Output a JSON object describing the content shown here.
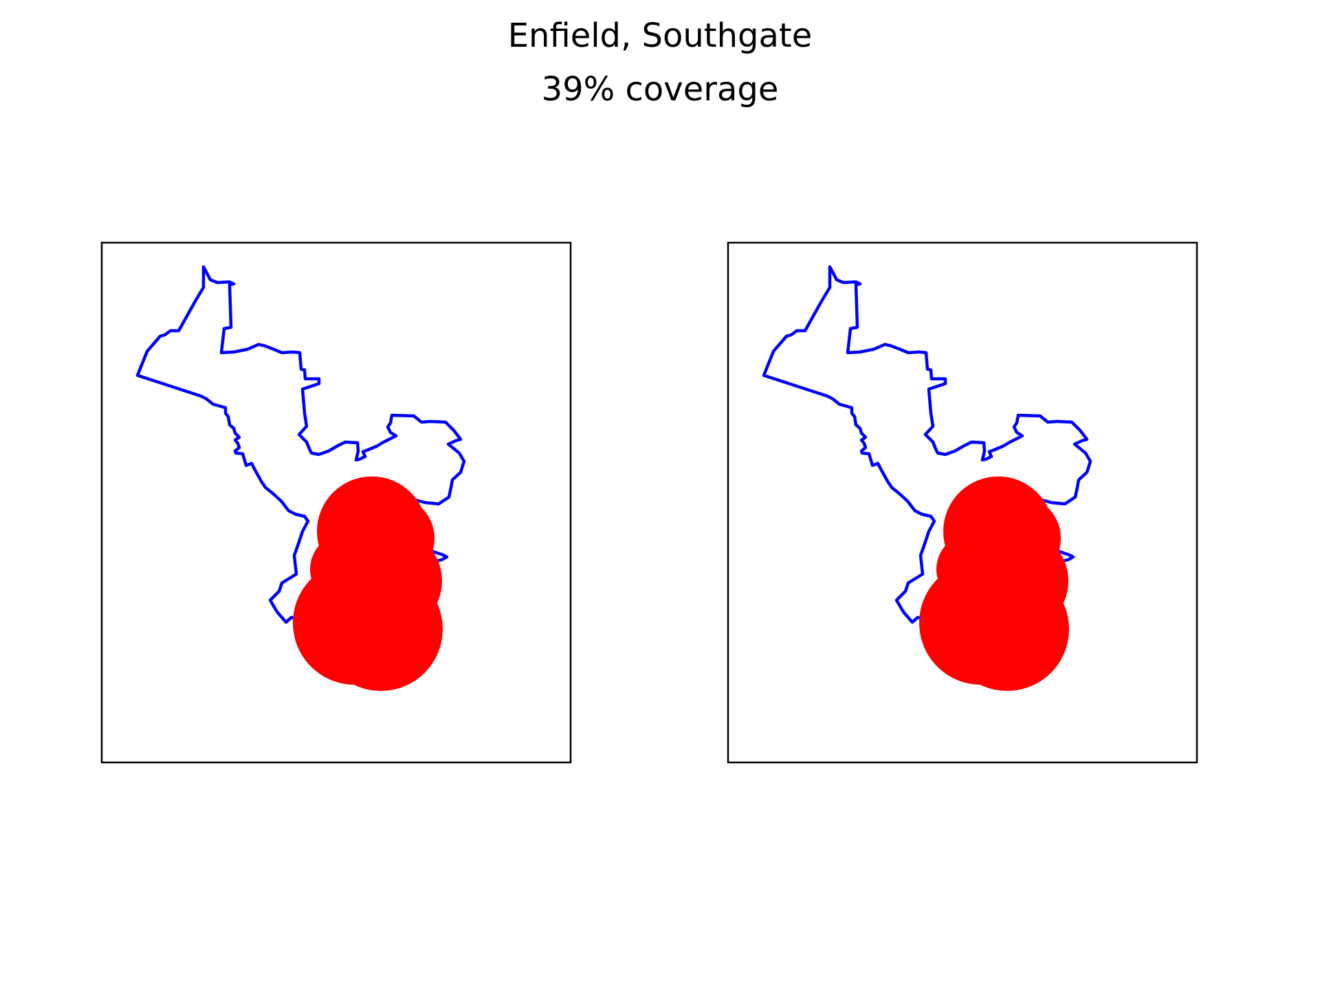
{
  "figure": {
    "title": "Enfield, Southgate",
    "subtitle": "39% coverage"
  },
  "colors": {
    "boundary": "#0000ff",
    "coverage": "#ff0000",
    "frame": "#000000"
  },
  "panels": [
    {
      "name": "left-map-panel"
    },
    {
      "name": "right-map-panel"
    }
  ]
}
